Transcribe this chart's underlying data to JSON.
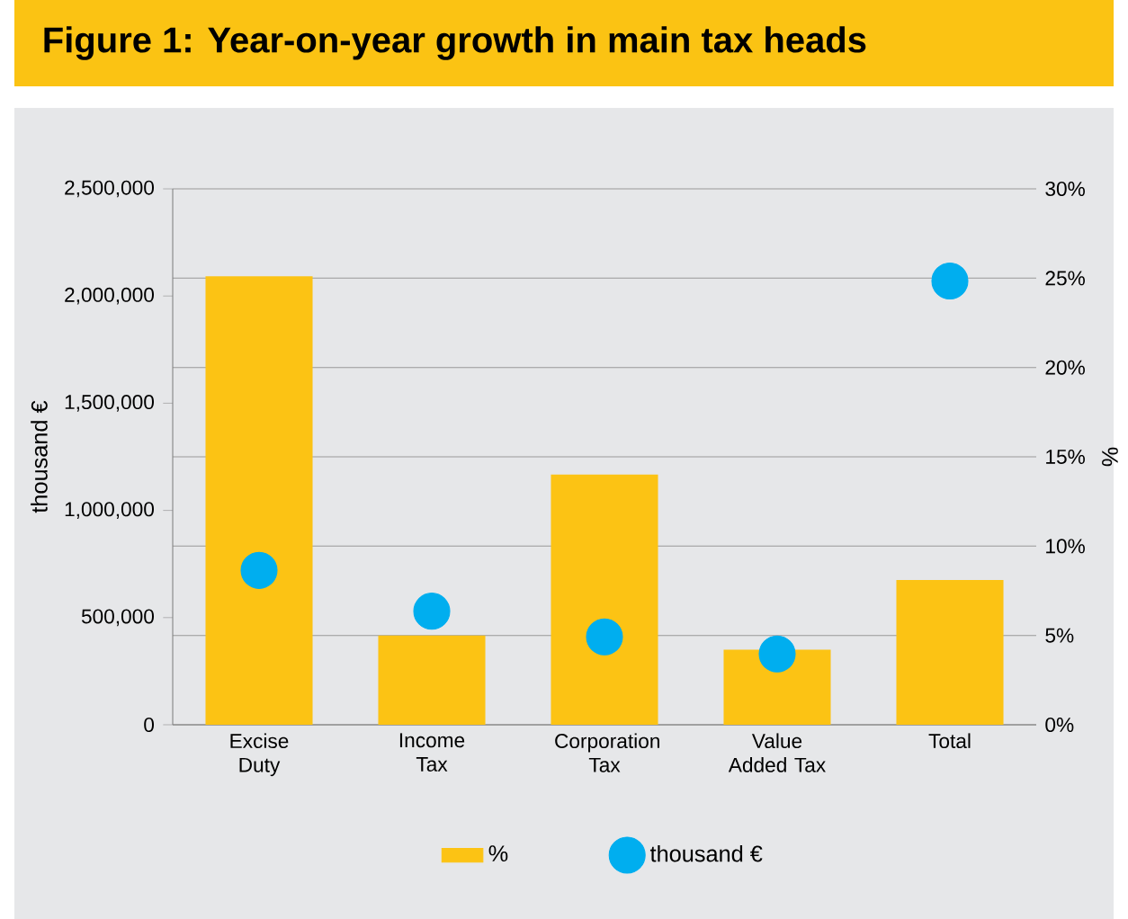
{
  "chart_data": {
    "type": "bar",
    "title": "Figure 1: Year-on-year growth in main tax heads",
    "categories": [
      "Excise Duty",
      "Income Tax",
      "Corporation Tax",
      "Value Added Tax",
      "Total"
    ],
    "series": [
      {
        "name": "%",
        "axis": "y2",
        "color": "#fcc314",
        "values": [
          25.1,
          5.0,
          14.0,
          4.2,
          8.1
        ]
      },
      {
        "name": "thousand €",
        "type": "scatter",
        "color": "#00aeef",
        "values": [
          720000,
          530000,
          410000,
          330000,
          2070000
        ]
      }
    ],
    "ylabel": "thousand €",
    "y2label": "%",
    "ylim": [
      0,
      2500000
    ],
    "yticks": [
      {
        "value": 0,
        "label": "0"
      },
      {
        "value": 500000,
        "label": "500,000"
      },
      {
        "value": 1000000,
        "label": "1,000,000"
      },
      {
        "value": 1500000,
        "label": "1,500,000"
      },
      {
        "value": 2000000,
        "label": "2,000,000"
      },
      {
        "value": 2500000,
        "label": "2,500,000"
      }
    ],
    "y2lim": [
      0,
      30
    ],
    "y2ticks": [
      {
        "value": 0,
        "label": "0%"
      },
      {
        "value": 5,
        "label": "5%"
      },
      {
        "value": 10,
        "label": "10%"
      },
      {
        "value": 15,
        "label": "15%"
      },
      {
        "value": 20,
        "label": "20%"
      },
      {
        "value": 25,
        "label": "25%"
      },
      {
        "value": 30,
        "label": "30%"
      }
    ],
    "grid": "y",
    "legend": "bottom",
    "marker": "circle"
  }
}
